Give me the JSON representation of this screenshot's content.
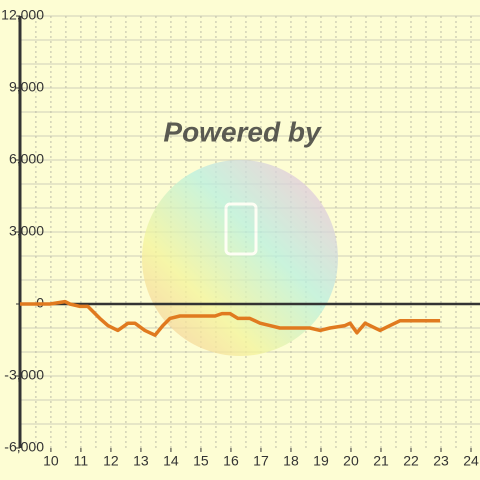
{
  "chart_data": {
    "type": "line",
    "watermark": "Powered by",
    "x": [
      8.97,
      9.97,
      10.47,
      10.63,
      10.97,
      11.23,
      11.63,
      11.9,
      12.23,
      12.57,
      12.8,
      13.13,
      13.47,
      13.73,
      13.97,
      14.3,
      15.47,
      15.7,
      15.97,
      16.23,
      16.63,
      16.97,
      17.3,
      17.63,
      18.63,
      18.97,
      19.3,
      19.8,
      19.97,
      20.2,
      20.47,
      20.97,
      21.3,
      21.63,
      22.97
    ],
    "series": [
      {
        "color": "#e07a1f",
        "values": [
          0,
          0,
          100,
          0,
          -100,
          -100,
          -600,
          -900,
          -1100,
          -800,
          -800,
          -1100,
          -1300,
          -900,
          -600,
          -500,
          -500,
          -400,
          -400,
          -600,
          -600,
          -800,
          -900,
          -1000,
          -1000,
          -1100,
          -1000,
          -900,
          -800,
          -1200,
          -800,
          -1100,
          -900,
          -700,
          -700
        ]
      }
    ],
    "xlim": [
      8.97,
      24.3
    ],
    "ylim": [
      -6000,
      12000
    ],
    "xticks": [
      10,
      11,
      12,
      13,
      14,
      15,
      16,
      17,
      18,
      19,
      20,
      21,
      22,
      23,
      24
    ],
    "yticks": [
      {
        "value": -6000,
        "label": "-6,000"
      },
      {
        "value": -3000,
        "label": "-3,000"
      },
      0,
      {
        "value": 3000,
        "label": "3,000"
      },
      {
        "value": 6000,
        "label": "6,000"
      },
      {
        "value": 9000,
        "label": "9,000"
      },
      {
        "value": 12000,
        "label": "12,000"
      }
    ],
    "xminorticks": [
      9.5,
      10,
      10.5,
      11,
      11.5,
      12,
      12.5,
      13,
      13.5,
      14,
      14.5,
      15,
      15.5,
      16,
      16.5,
      17,
      17.5,
      18,
      18.5,
      19,
      19.5,
      20,
      20.5,
      21,
      21.5,
      22,
      22.5,
      23,
      23.5,
      24
    ],
    "yminorticks": [
      -5000,
      -4000,
      -3000,
      -2000,
      -1000,
      1000,
      2000,
      3000,
      4000,
      5000,
      6000,
      7000,
      8000,
      9000,
      10000,
      11000,
      12000
    ],
    "grid": true
  }
}
